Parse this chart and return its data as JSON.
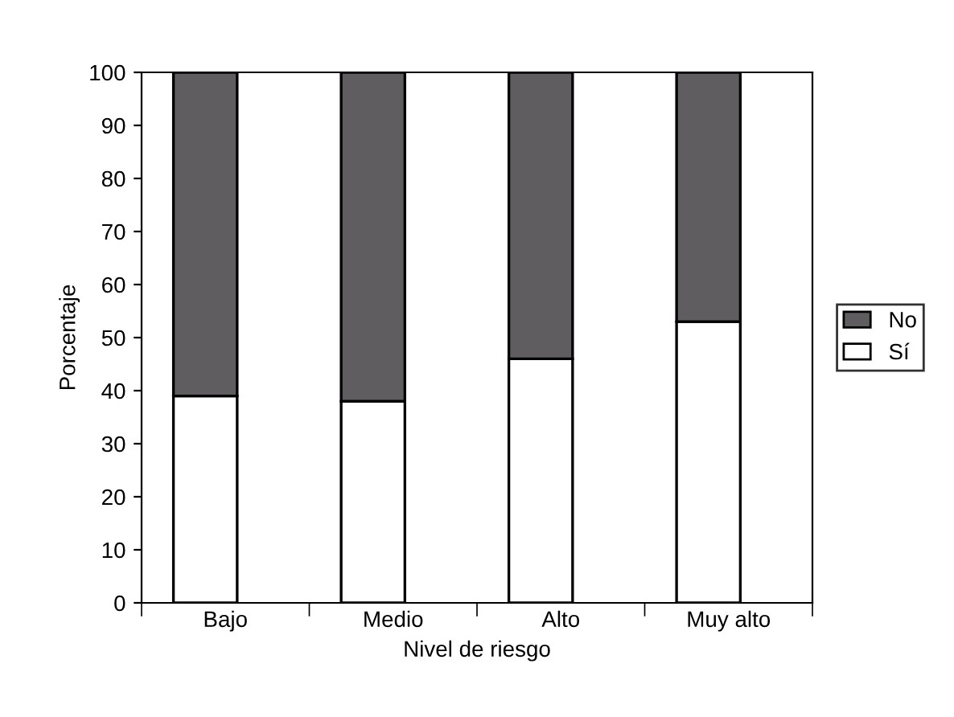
{
  "chart_data": {
    "type": "bar",
    "stacked": true,
    "xlabel": "Nivel de riesgo",
    "ylabel": "Porcentaje",
    "categories": [
      "Bajo",
      "Medio",
      "Alto",
      "Muy alto"
    ],
    "series": [
      {
        "name": "Sí",
        "color": "#ffffff",
        "values": [
          39,
          38,
          46,
          53
        ]
      },
      {
        "name": "No",
        "color": "#5f5d5f",
        "values": [
          61,
          62,
          54,
          47
        ]
      }
    ],
    "ylim": [
      0,
      100
    ],
    "yticks": [
      0,
      10,
      20,
      30,
      40,
      50,
      60,
      70,
      80,
      90,
      100
    ],
    "grid": false,
    "legend": "right"
  }
}
